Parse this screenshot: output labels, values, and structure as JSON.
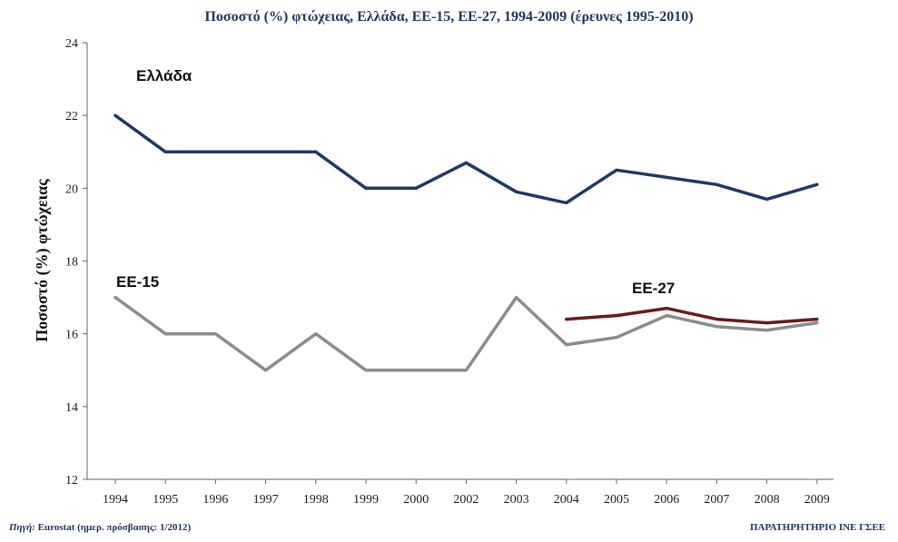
{
  "footer": {
    "source_label": "Πηγή:",
    "source_text": "Eurostat (ημερ. πρόσβασης: 1/2012)",
    "organization": "ΠΑΡΑΤΗΡΗΤΗΡΙΟ ΙΝΕ ΓΣΕΕ"
  },
  "chart_data": {
    "type": "line",
    "title": "Ποσοστό (%) φτώχειας, Ελλάδα, ΕΕ-15, ΕΕ-27, 1994-2009 (έρευνες 1995-2010)",
    "xlabel": "",
    "ylabel": "Ποσοστό (%) φτώχειας",
    "categories": [
      "1994",
      "1995",
      "1996",
      "1997",
      "1998",
      "1999",
      "2000",
      "2002",
      "2003",
      "2004",
      "2005",
      "2006",
      "2007",
      "2008",
      "2009"
    ],
    "ylim": [
      12,
      24
    ],
    "yticks": [
      12,
      14,
      16,
      18,
      20,
      22,
      24
    ],
    "grid": false,
    "legend": "inline labels",
    "series": [
      {
        "name": "Ελλάδα",
        "color": "#1f3864",
        "values": [
          22,
          21,
          21,
          21,
          21,
          20,
          20,
          20.7,
          19.9,
          19.6,
          20.5,
          20.3,
          20.1,
          19.7,
          20.1
        ]
      },
      {
        "name": "ΕΕ-15",
        "color": "#8c8c8c",
        "values": [
          17,
          16,
          16,
          15,
          16,
          15,
          15,
          15,
          17,
          15.7,
          15.9,
          16.5,
          16.2,
          16.1,
          16.3
        ]
      },
      {
        "name": "ΕΕ-27",
        "color": "#6b1a1f",
        "values": [
          null,
          null,
          null,
          null,
          null,
          null,
          null,
          null,
          null,
          16.4,
          16.5,
          16.7,
          16.4,
          16.3,
          16.4
        ]
      }
    ]
  }
}
